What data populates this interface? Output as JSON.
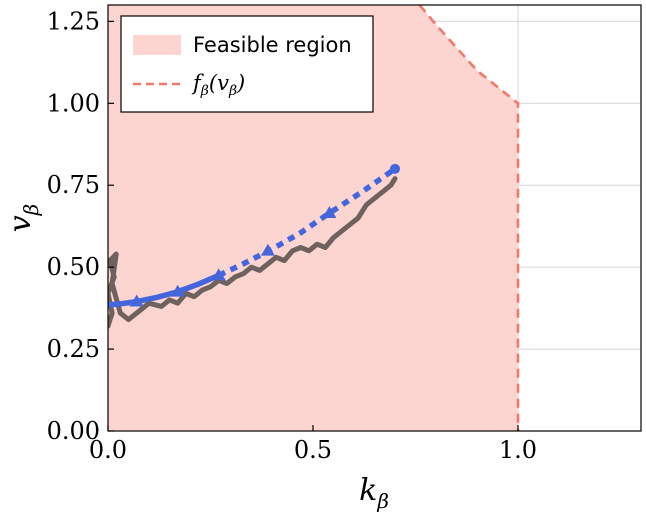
{
  "chart_data": {
    "type": "line",
    "title": "",
    "xlabel": "k",
    "xlabel_sub": "β",
    "ylabel": "v",
    "ylabel_sub": "β",
    "xlim": [
      0.0,
      1.3
    ],
    "ylim": [
      0.0,
      1.3
    ],
    "xticks": [
      0.0,
      0.5,
      1.0
    ],
    "xtick_labels": [
      "0.0",
      "0.5",
      "1.0"
    ],
    "yticks": [
      0.0,
      0.25,
      0.5,
      0.75,
      1.0,
      1.25
    ],
    "ytick_labels": [
      "0.00",
      "0.25",
      "0.50",
      "0.75",
      "1.00",
      "1.25"
    ],
    "grid": true,
    "legend_position": "top-left",
    "colors": {
      "feasible_fill": "#fdd5d0",
      "boundary": "#f07a6a",
      "trajectory": "#4466dd",
      "noisy": "#6e625e"
    },
    "legend": {
      "feasible_label": "Feasible region",
      "boundary_label_func": "f",
      "boundary_label_arg": "(v",
      "boundary_label_close": ")",
      "sub": "β"
    },
    "boundary": {
      "name": "f_β(v_β)",
      "x": [
        0.76,
        0.8,
        0.85,
        0.9,
        0.95,
        1.0,
        1.0
      ],
      "y": [
        1.3,
        1.24,
        1.17,
        1.1,
        1.05,
        1.0,
        0.0
      ]
    },
    "series": [
      {
        "name": "trajectory-solid",
        "style": "solid",
        "x": [
          0.0,
          0.03,
          0.07,
          0.12,
          0.17,
          0.22,
          0.27
        ],
        "y": [
          0.385,
          0.388,
          0.395,
          0.408,
          0.425,
          0.448,
          0.475
        ]
      },
      {
        "name": "trajectory-dotted",
        "style": "dotted",
        "x": [
          0.27,
          0.33,
          0.4,
          0.47,
          0.54,
          0.62,
          0.7
        ],
        "y": [
          0.475,
          0.51,
          0.555,
          0.605,
          0.665,
          0.73,
          0.8
        ]
      },
      {
        "name": "noisy-path",
        "style": "thick",
        "x": [
          0.0,
          0.01,
          0.0,
          0.015,
          0.005,
          0.02,
          0.01,
          0.03,
          0.05,
          0.08,
          0.1,
          0.13,
          0.15,
          0.17,
          0.19,
          0.21,
          0.23,
          0.25,
          0.27,
          0.29,
          0.31,
          0.33,
          0.35,
          0.37,
          0.39,
          0.41,
          0.43,
          0.45,
          0.47,
          0.49,
          0.51,
          0.53,
          0.55,
          0.57,
          0.59,
          0.61,
          0.63,
          0.65,
          0.67,
          0.69,
          0.7
        ],
        "y": [
          0.32,
          0.36,
          0.42,
          0.47,
          0.52,
          0.54,
          0.45,
          0.36,
          0.34,
          0.37,
          0.39,
          0.38,
          0.4,
          0.39,
          0.42,
          0.41,
          0.43,
          0.44,
          0.46,
          0.45,
          0.47,
          0.48,
          0.5,
          0.49,
          0.51,
          0.53,
          0.52,
          0.55,
          0.56,
          0.55,
          0.57,
          0.56,
          0.59,
          0.61,
          0.63,
          0.65,
          0.69,
          0.71,
          0.73,
          0.75,
          0.77
        ]
      }
    ],
    "markers": {
      "triangles": [
        {
          "x": 0.07,
          "y": 0.395
        },
        {
          "x": 0.17,
          "y": 0.425
        },
        {
          "x": 0.27,
          "y": 0.475
        },
        {
          "x": 0.39,
          "y": 0.55
        },
        {
          "x": 0.54,
          "y": 0.665
        }
      ],
      "end_circle": {
        "x": 0.7,
        "y": 0.8
      }
    }
  }
}
